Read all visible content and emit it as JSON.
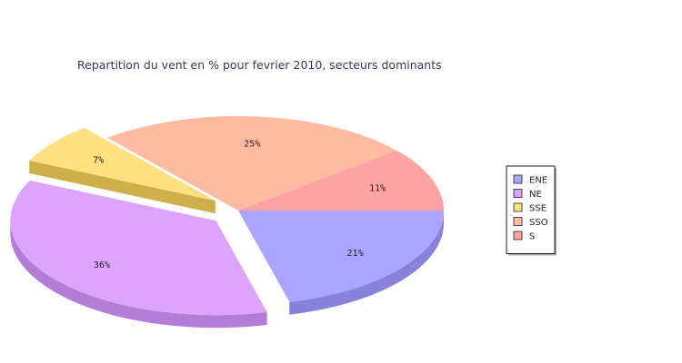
{
  "chart_data": {
    "type": "pie",
    "title": "Repartition du vent en % pour fevrier 2010, secteurs dominants",
    "categories": [
      "ENE",
      "NE",
      "SSE",
      "SSO",
      "S"
    ],
    "values": [
      21,
      36,
      7,
      25,
      11
    ],
    "labels": [
      "21%",
      "36%",
      "7%",
      "25%",
      "11%"
    ],
    "exploded": [
      "NE",
      "SSE"
    ],
    "colors": [
      "#aaa6ff",
      "#dda4ff",
      "#ffe080",
      "#ffbaa2",
      "#ffa2a2"
    ],
    "side_colors": [
      "#8882dc",
      "#b27cd8",
      "#cdb04a",
      "#d49478",
      "#d47c7c"
    ],
    "legend_position": "right"
  }
}
